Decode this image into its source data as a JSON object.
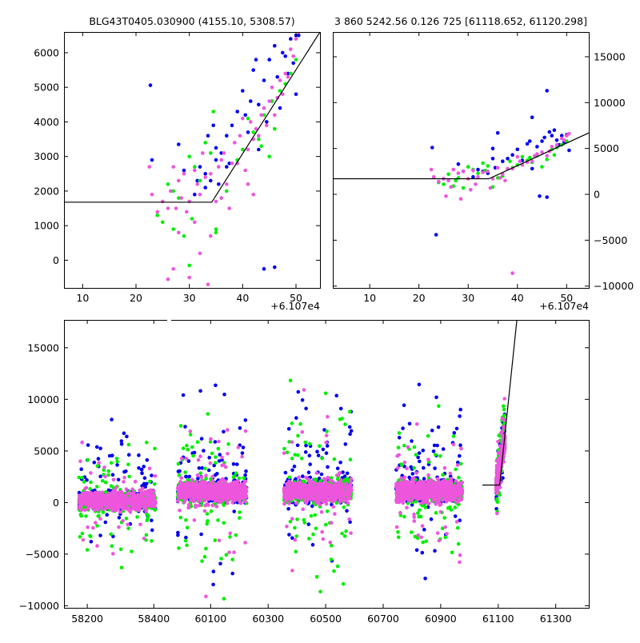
{
  "colors": {
    "blue": "#0000ee",
    "green": "#00ee00",
    "pink": "#ee55dd",
    "line": "#000000"
  },
  "chart_data": [
    {
      "type": "scatter",
      "id": "zoom",
      "title": "BLG43T0405.030900 (4155.10, 5308.57)",
      "xlabel": "",
      "ylabel": "",
      "xlim": [
        6.5,
        54.5
      ],
      "ylim": [
        -800,
        6600
      ],
      "x_offset_label": "+6.107e4",
      "xticks": [
        10,
        20,
        30,
        40,
        50
      ],
      "yticks": [
        0,
        1000,
        2000,
        3000,
        4000,
        5000,
        6000
      ],
      "ytick_side": "left",
      "series": [
        {
          "name": "blue",
          "color": "#0000ee",
          "x": [
            22.7,
            23,
            28,
            29,
            31,
            32,
            33,
            33.5,
            34,
            34.5,
            35,
            35,
            35.5,
            36,
            37,
            37.5,
            38,
            39,
            40,
            40.5,
            41,
            42,
            42.5,
            43,
            43,
            44,
            44.5,
            45,
            45.5,
            46,
            46.5,
            47,
            47.5,
            48,
            48.5,
            49,
            49.5,
            50,
            50,
            50.5,
            31.5,
            33,
            37,
            41.5,
            44,
            46
          ],
          "y": [
            5060,
            2900,
            3350,
            2600,
            1900,
            2700,
            2500,
            3600,
            2300,
            3900,
            2900,
            3250,
            2200,
            3100,
            3600,
            2800,
            3900,
            4300,
            4900,
            4200,
            3700,
            5500,
            5800,
            3200,
            4500,
            5200,
            4000,
            5800,
            4600,
            6200,
            5300,
            4400,
            6000,
            5900,
            5400,
            6400,
            5700,
            6500,
            4800,
            6500,
            2300,
            2100,
            2700,
            4600,
            -250,
            -200
          ]
        },
        {
          "name": "green",
          "color": "#00ee00",
          "x": [
            24,
            25,
            26,
            27,
            28,
            29,
            30,
            30.5,
            31,
            32,
            33,
            34,
            34.5,
            35,
            36,
            37,
            38,
            39,
            40,
            41,
            42,
            43,
            43.5,
            44,
            45,
            45.5,
            46,
            47,
            48,
            49,
            50,
            27,
            30,
            35
          ],
          "y": [
            1300,
            1100,
            2200,
            900,
            1800,
            700,
            3000,
            1200,
            2700,
            2300,
            3400,
            3100,
            4300,
            800,
            1800,
            2000,
            2800,
            2900,
            3200,
            4100,
            3700,
            3500,
            3300,
            4200,
            3000,
            4600,
            3800,
            4900,
            5100,
            5400,
            5800,
            2000,
            -150,
            900
          ]
        },
        {
          "name": "pink",
          "color": "#ee55dd",
          "x": [
            22.5,
            23,
            24,
            25,
            26,
            26.5,
            27,
            27.5,
            28,
            28.5,
            29,
            29.5,
            30,
            31,
            31.5,
            32,
            32.5,
            33,
            34,
            35,
            35.5,
            36,
            36.5,
            37,
            38,
            38.5,
            39,
            40,
            40.5,
            41,
            41.5,
            42,
            42.5,
            43,
            44,
            44.5,
            45,
            45.5,
            46,
            46.5,
            47,
            47.5,
            48,
            48.5,
            49,
            49.5,
            50,
            50.5,
            26,
            27,
            30,
            31,
            33.5,
            34,
            37.5,
            39.5,
            41,
            43.5,
            28,
            32,
            36,
            42
          ],
          "y": [
            2700,
            1900,
            1400,
            1700,
            1500,
            2000,
            2700,
            1500,
            2300,
            1800,
            2500,
            1400,
            1700,
            2600,
            2200,
            1900,
            3100,
            2400,
            2500,
            1700,
            2700,
            2900,
            3100,
            2200,
            2800,
            3400,
            2800,
            4100,
            2600,
            3200,
            4000,
            3500,
            3800,
            3600,
            4400,
            3900,
            4600,
            5000,
            4200,
            4700,
            5200,
            4800,
            5400,
            5300,
            6100,
            5900,
            6400,
            6600,
            -550,
            -250,
            -500,
            1100,
            -700,
            700,
            1500,
            3600,
            2200,
            4200,
            800,
            200,
            1800,
            1900
          ]
        }
      ],
      "lines": [
        {
          "x": [
            6.5,
            34.2,
            54.5
          ],
          "y": [
            1680,
            1680,
            6600
          ]
        }
      ]
    },
    {
      "type": "scatter",
      "id": "wide",
      "title": "3 860 5242.56 0.126 725 [61118.652, 61120.298]",
      "xlabel": "",
      "ylabel": "",
      "xlim": [
        2.5,
        54.5
      ],
      "ylim": [
        -10200,
        17700
      ],
      "x_offset_label": "+6.107e4",
      "xticks": [
        10,
        20,
        30,
        40,
        50
      ],
      "yticks": [
        -10000,
        -5000,
        0,
        5000,
        10000,
        15000
      ],
      "ytick_side": "right",
      "series": [
        {
          "name": "blue",
          "color": "#0000ee",
          "x": [
            22.7,
            23.5,
            28,
            29,
            31,
            32,
            33,
            34,
            35,
            35.5,
            36,
            37,
            38,
            39,
            40,
            41,
            42,
            42.5,
            43,
            44,
            45,
            45.5,
            46,
            46.5,
            47,
            47.5,
            48,
            48.5,
            49,
            49.5,
            50,
            50.5,
            35,
            43,
            44.5,
            46
          ],
          "y": [
            5100,
            -4400,
            3300,
            2500,
            1900,
            2700,
            2500,
            2300,
            3900,
            2900,
            6700,
            3600,
            3900,
            4300,
            4900,
            3700,
            5500,
            5800,
            8400,
            5200,
            5800,
            6200,
            11300,
            6800,
            6400,
            7000,
            5900,
            5400,
            6400,
            5700,
            6500,
            4800,
            5000,
            2800,
            -200,
            -300
          ]
        },
        {
          "name": "green",
          "color": "#00ee00",
          "x": [
            24,
            25,
            26,
            27,
            28,
            29,
            30,
            31,
            32,
            33,
            34,
            35,
            36,
            37,
            38,
            39,
            40,
            41,
            42,
            43,
            44,
            45,
            46,
            47,
            48,
            49,
            50,
            27.5,
            33.5,
            38.5,
            42.5,
            47.5
          ],
          "y": [
            1300,
            1100,
            2200,
            900,
            1800,
            700,
            3000,
            2700,
            2300,
            3400,
            3100,
            800,
            1800,
            2000,
            2800,
            2900,
            3200,
            4100,
            3700,
            3500,
            4200,
            3000,
            3800,
            4900,
            5100,
            5400,
            5800,
            1500,
            2600,
            3600,
            4000,
            4300
          ]
        },
        {
          "name": "pink",
          "color": "#ee55dd",
          "x": [
            22.5,
            23,
            24,
            25,
            26,
            27,
            28,
            29,
            30,
            31,
            32,
            33,
            34,
            35,
            36,
            37,
            38,
            39,
            40,
            41,
            42,
            43,
            44,
            45,
            46,
            47,
            48,
            49,
            50,
            50.5,
            25.5,
            28.5,
            31.5,
            34.5,
            37.5,
            40.5,
            43.5,
            46.5,
            49.5,
            39,
            26.5,
            30.5,
            36.5
          ],
          "y": [
            2700,
            1900,
            1400,
            1700,
            1500,
            2700,
            2300,
            2500,
            1700,
            2600,
            1900,
            2400,
            2500,
            1700,
            2900,
            2200,
            2800,
            2800,
            4100,
            3200,
            3500,
            3600,
            4400,
            4600,
            4200,
            5200,
            5400,
            6100,
            6400,
            6600,
            -200,
            -500,
            1100,
            700,
            1500,
            3600,
            4200,
            4700,
            5900,
            -8600,
            800,
            500,
            1800
          ]
        }
      ],
      "lines": [
        {
          "x": [
            2.5,
            34.2,
            54.5
          ],
          "y": [
            1700,
            1700,
            6700
          ]
        }
      ]
    },
    {
      "type": "scatter",
      "id": "full",
      "title": "",
      "xlabel": "",
      "ylabel": "",
      "broken_axis": true,
      "ylim": [
        -10200,
        17700
      ],
      "xticks": [
        58200,
        58400,
        60100,
        60300,
        60500,
        60700,
        60900,
        61100,
        61300
      ],
      "yticks": [
        -10000,
        -5000,
        0,
        5000,
        10000,
        15000
      ],
      "ytick_side": "left",
      "segments": [
        {
          "xlim": [
            58130,
            58445
          ]
        },
        {
          "xlim": [
            59960,
            61415
          ]
        }
      ],
      "seasons": [
        {
          "segment": 0,
          "x_range": [
            58175,
            58405
          ],
          "core_spread": 1100,
          "tail_spread": 5500
        },
        {
          "segment": 1,
          "x_range": [
            59985,
            60225
          ],
          "core_spread": 1300,
          "tail_spread": 8000
        },
        {
          "segment": 1,
          "x_range": [
            60355,
            60590
          ],
          "core_spread": 1300,
          "tail_spread": 7500
        },
        {
          "segment": 1,
          "x_range": [
            60745,
            60975
          ],
          "core_spread": 1300,
          "tail_spread": 7500
        },
        {
          "segment": 1,
          "x_range": [
            61093,
            61123
          ],
          "core_spread": 600,
          "tail_spread": 3500
        }
      ],
      "series": [
        {
          "name": "blue",
          "color": "#0000ee"
        },
        {
          "name": "green",
          "color": "#00ee00"
        },
        {
          "name": "pink",
          "color": "#ee55dd"
        }
      ],
      "lines": [
        {
          "x": [
            61045,
            61105,
            61165
          ],
          "y": [
            1700,
            1700,
            17700
          ]
        }
      ]
    }
  ]
}
